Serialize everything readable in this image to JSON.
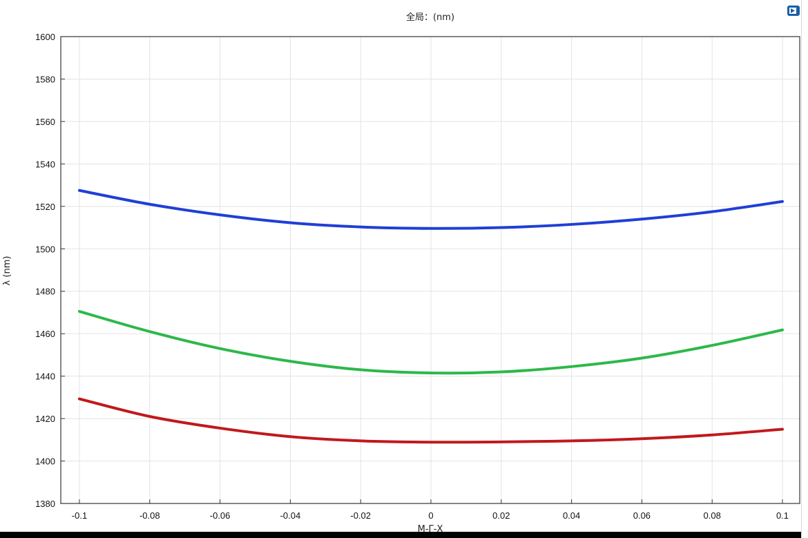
{
  "window": {
    "title": "全局：(nm)"
  },
  "toolbar": {
    "icon": "plot-window-icon"
  },
  "chart_data": {
    "type": "line",
    "title": "全局：(nm)",
    "xlabel": "M-Γ-X",
    "ylabel": "λ (nm)",
    "xlim": [
      -0.1,
      0.1
    ],
    "ylim": [
      1380,
      1600
    ],
    "xticks": [
      "-0.1",
      "-0.08",
      "-0.06",
      "-0.04",
      "-0.02",
      "0",
      "0.02",
      "0.04",
      "0.06",
      "0.08",
      "0.1"
    ],
    "yticks": [
      "1380",
      "1400",
      "1420",
      "1440",
      "1460",
      "1480",
      "1500",
      "1520",
      "1540",
      "1560",
      "1580",
      "1600"
    ],
    "grid": true,
    "series": [
      {
        "color": "#1f3fd6",
        "x": [
          -0.1,
          -0.08,
          -0.06,
          -0.04,
          -0.02,
          0,
          0.02,
          0.04,
          0.06,
          0.08,
          0.1
        ],
        "y": [
          1527.5,
          1521,
          1516,
          1512.3,
          1510.3,
          1509.6,
          1510,
          1511.5,
          1514,
          1517.5,
          1522.3
        ]
      },
      {
        "color": "#2db84a",
        "x": [
          -0.1,
          -0.08,
          -0.06,
          -0.04,
          -0.02,
          0,
          0.02,
          0.04,
          0.06,
          0.08,
          0.1
        ],
        "y": [
          1470.5,
          1461,
          1453,
          1447,
          1443,
          1441.5,
          1442,
          1444.5,
          1448.5,
          1454.5,
          1461.8
        ]
      },
      {
        "color": "#c0191c",
        "x": [
          -0.1,
          -0.08,
          -0.06,
          -0.04,
          -0.02,
          0,
          0.02,
          0.04,
          0.06,
          0.08,
          0.1
        ],
        "y": [
          1429.3,
          1421,
          1415.5,
          1411.5,
          1409.5,
          1408.9,
          1409,
          1409.5,
          1410.5,
          1412.3,
          1415
        ]
      }
    ]
  }
}
